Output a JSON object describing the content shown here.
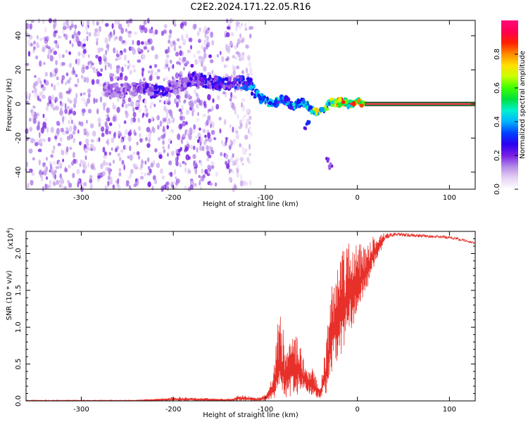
{
  "figure": {
    "title": "C2E2.2024.171.22.05.R16"
  },
  "chart_data": [
    {
      "type": "heatmap",
      "xlabel": "Height of straight line (km)",
      "ylabel": "Frequency (Hz)",
      "xlim": [
        -360,
        128
      ],
      "ylim": [
        -50,
        49
      ],
      "xticks": [
        -300,
        -200,
        -100,
        0,
        100
      ],
      "yticks": [
        -40,
        -20,
        0,
        20,
        40
      ],
      "grid": false,
      "colorbar": {
        "label": "Normalized spectral amplitude",
        "range": [
          0,
          1
        ],
        "ticks": [
          0.0,
          0.2,
          0.4,
          0.6,
          0.8
        ],
        "colors": [
          "#ffffff",
          "#e6d2f5",
          "#b48ce6",
          "#7a1ee6",
          "#2b00f0",
          "#0040ff",
          "#00b4ff",
          "#00f0d0",
          "#00e040",
          "#3cff00",
          "#c8ff00",
          "#ffe000",
          "#ff8c00",
          "#ff2000",
          "#ff0050",
          "#ff0a78"
        ]
      },
      "carrier_line": {
        "x_start": 8,
        "x_end": 128,
        "frequency": 0,
        "amplitude": 0.95
      },
      "ridge": {
        "x": [
          -275,
          -255,
          -235,
          -215,
          -195,
          -178,
          -165,
          -150,
          -135,
          -118,
          -105,
          -92,
          -80,
          -70,
          -60,
          -52,
          -45,
          -38,
          -28,
          -18,
          -8,
          0,
          8
        ],
        "frequency": [
          8,
          8,
          9,
          7,
          10,
          15,
          13,
          12,
          13,
          12,
          3,
          0,
          3,
          -1,
          1,
          -2,
          -5,
          -3,
          1,
          1,
          0,
          1,
          0
        ],
        "amplitude": [
          0.18,
          0.2,
          0.22,
          0.3,
          0.2,
          0.28,
          0.3,
          0.33,
          0.3,
          0.4,
          0.45,
          0.5,
          0.4,
          0.45,
          0.5,
          0.55,
          0.8,
          0.7,
          0.8,
          0.9,
          0.85,
          0.9,
          0.95
        ]
      },
      "outliers": [
        {
          "x": -55,
          "frequency": -13,
          "amplitude": 0.3
        },
        {
          "x": -30,
          "frequency": -35,
          "amplitude": 0.2
        }
      ],
      "noise_extent": [
        -360,
        -115
      ]
    },
    {
      "type": "line",
      "xlabel": "Height of straight line (km)",
      "ylabel": "SNR (10 * v/v)",
      "y_scale_label": "(x10",
      "y_scale_exponent": "4",
      "y_scale_close": ")",
      "xlim": [
        -360,
        128
      ],
      "ylim": [
        0,
        2.3
      ],
      "xticks": [
        -300,
        -200,
        -100,
        0,
        100
      ],
      "yticks": [
        0.0,
        0.5,
        1.0,
        1.5,
        2.0
      ],
      "ytick_labels": [
        "0.0",
        "0.5",
        "1.0",
        "1.5",
        "2.0"
      ],
      "grid": false,
      "series": [
        {
          "color": "#e8302a",
          "envelope": {
            "x": [
              -360,
              -240,
              -205,
              -200,
              -150,
              -135,
              -128,
              -110,
              -100,
              -93,
              -85,
              -78,
              -70,
              -62,
              -55,
              -48,
              -40,
              -34,
              -28,
              -22,
              -15,
              -8,
              0,
              10,
              20,
              30,
              40,
              60,
              80,
              100,
              115,
              128
            ],
            "lower": [
              0.0,
              0.0,
              0.0,
              0.0,
              0.0,
              0.0,
              0.0,
              0.0,
              0.0,
              0.02,
              0.05,
              0.05,
              0.05,
              0.1,
              0.12,
              0.05,
              0.03,
              0.1,
              0.35,
              0.5,
              0.7,
              0.95,
              1.15,
              1.5,
              1.9,
              2.15,
              2.22,
              2.2,
              2.2,
              2.18,
              2.15,
              2.12
            ],
            "upper": [
              0.01,
              0.01,
              0.04,
              0.06,
              0.03,
              0.03,
              0.09,
              0.04,
              0.1,
              0.35,
              1.25,
              0.8,
              0.95,
              0.85,
              0.4,
              0.45,
              0.2,
              0.85,
              1.6,
              2.0,
              2.1,
              2.2,
              2.15,
              2.18,
              2.25,
              2.28,
              2.28,
              2.27,
              2.25,
              2.24,
              2.2,
              2.15
            ]
          }
        }
      ]
    }
  ]
}
